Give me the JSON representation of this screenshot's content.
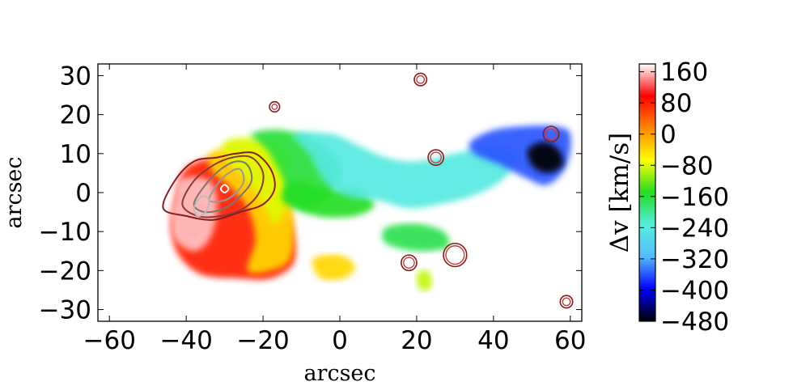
{
  "chart_data": {
    "type": "heatmap",
    "xlabel": "arcsec",
    "ylabel": "arcsec",
    "xlim": [
      -63,
      63
    ],
    "ylim": [
      -33,
      33
    ],
    "xticks": [
      {
        "value": -60,
        "label": "−60"
      },
      {
        "value": -40,
        "label": "−40"
      },
      {
        "value": -20,
        "label": "−20"
      },
      {
        "value": 0,
        "label": "0"
      },
      {
        "value": 20,
        "label": "20"
      },
      {
        "value": 40,
        "label": "40"
      },
      {
        "value": 60,
        "label": "60"
      }
    ],
    "yticks": [
      {
        "value": 30,
        "label": "30"
      },
      {
        "value": 20,
        "label": "20"
      },
      {
        "value": 10,
        "label": "10"
      },
      {
        "value": 0,
        "label": "0"
      },
      {
        "value": -10,
        "label": "−10"
      },
      {
        "value": -20,
        "label": "−20"
      },
      {
        "value": -30,
        "label": "−30"
      }
    ],
    "colorbar": {
      "label": "Δv [km/s]",
      "range": [
        -480,
        180
      ],
      "ticks": [
        {
          "value": 160,
          "label": "160"
        },
        {
          "value": 80,
          "label": "80"
        },
        {
          "value": 0,
          "label": "0"
        },
        {
          "value": -80,
          "label": "−80"
        },
        {
          "value": -160,
          "label": "−160"
        },
        {
          "value": -240,
          "label": "−240"
        },
        {
          "value": -320,
          "label": "−320"
        },
        {
          "value": -400,
          "label": "−400"
        },
        {
          "value": -480,
          "label": "−480"
        }
      ],
      "colormap": [
        "#000000",
        "#0000ff",
        "#55bbff",
        "#55eedd",
        "#22dd22",
        "#ffff00",
        "#ff8800",
        "#ff0000",
        "#ffffff"
      ]
    },
    "velocity_regions": [
      {
        "name": "red-head",
        "points": [
          [
            -43,
            -2
          ],
          [
            -41,
            5
          ],
          [
            -37,
            8
          ],
          [
            -30,
            9
          ],
          [
            -22,
            8
          ],
          [
            -17,
            4
          ],
          [
            -14,
            -4
          ],
          [
            -12,
            -10
          ],
          [
            -12,
            -18
          ],
          [
            -18,
            -22
          ],
          [
            -26,
            -22
          ],
          [
            -36,
            -21
          ],
          [
            -42,
            -16
          ],
          [
            -44,
            -9
          ]
        ],
        "value": 80
      },
      {
        "name": "white-core",
        "points": [
          [
            -43,
            -2
          ],
          [
            -42,
            3
          ],
          [
            -37,
            4
          ],
          [
            -33,
            2
          ],
          [
            -32,
            -5
          ],
          [
            -34,
            -12
          ],
          [
            -38,
            -15
          ],
          [
            -43,
            -12
          ],
          [
            -44,
            -6
          ]
        ],
        "value": 160
      },
      {
        "name": "orange-band",
        "points": [
          [
            -34,
            10
          ],
          [
            -27,
            12
          ],
          [
            -20,
            11
          ],
          [
            -16,
            6
          ],
          [
            -13,
            0
          ],
          [
            -12,
            -9
          ],
          [
            -13,
            -17
          ],
          [
            -18,
            -20
          ],
          [
            -24,
            -20
          ],
          [
            -22,
            -12
          ],
          [
            -24,
            -4
          ],
          [
            -29,
            2
          ],
          [
            -33,
            5
          ]
        ],
        "value": -40
      },
      {
        "name": "yellow-band",
        "points": [
          [
            -30,
            13
          ],
          [
            -22,
            14
          ],
          [
            -15,
            11
          ],
          [
            -13,
            4
          ],
          [
            -14,
            -4
          ],
          [
            -17,
            -8
          ],
          [
            -20,
            -3
          ],
          [
            -24,
            3
          ],
          [
            -29,
            8
          ]
        ],
        "value": -80
      },
      {
        "name": "green-ridge",
        "points": [
          [
            -23,
            15
          ],
          [
            -15,
            16
          ],
          [
            -6,
            13
          ],
          [
            0,
            7
          ],
          [
            -2,
            0
          ],
          [
            -8,
            -4
          ],
          [
            -13,
            -2
          ],
          [
            -15,
            4
          ],
          [
            -19,
            11
          ]
        ],
        "value": -160
      },
      {
        "name": "green-tail",
        "points": [
          [
            -15,
            -2
          ],
          [
            -6,
            -6
          ],
          [
            4,
            -6
          ],
          [
            9,
            -3
          ],
          [
            4,
            1
          ],
          [
            -4,
            1
          ],
          [
            -12,
            3
          ]
        ],
        "value": -150
      },
      {
        "name": "cyan-main",
        "points": [
          [
            -12,
            15
          ],
          [
            -2,
            15
          ],
          [
            5,
            12
          ],
          [
            12,
            9
          ],
          [
            20,
            8
          ],
          [
            30,
            10
          ],
          [
            40,
            12
          ],
          [
            46,
            9
          ],
          [
            42,
            3
          ],
          [
            34,
            -1
          ],
          [
            26,
            -3
          ],
          [
            18,
            -4
          ],
          [
            10,
            -2
          ],
          [
            2,
            -1
          ],
          [
            -4,
            3
          ],
          [
            -8,
            10
          ]
        ],
        "value": -240
      },
      {
        "name": "blue-tail",
        "points": [
          [
            34,
            13
          ],
          [
            40,
            16
          ],
          [
            48,
            17
          ],
          [
            56,
            17
          ],
          [
            60,
            15
          ],
          [
            59,
            7
          ],
          [
            54,
            2
          ],
          [
            48,
            4
          ],
          [
            42,
            7
          ],
          [
            35,
            10
          ]
        ],
        "value": -360
      },
      {
        "name": "black-tip",
        "points": [
          [
            49,
            11
          ],
          [
            53,
            13
          ],
          [
            57,
            11
          ],
          [
            58,
            7
          ],
          [
            54,
            5
          ],
          [
            50,
            7
          ]
        ],
        "value": -480
      },
      {
        "name": "green-south",
        "points": [
          [
            12,
            -9
          ],
          [
            20,
            -8
          ],
          [
            27,
            -10
          ],
          [
            28,
            -14
          ],
          [
            20,
            -15
          ],
          [
            12,
            -13
          ]
        ],
        "value": -170
      },
      {
        "name": "orange-south",
        "points": [
          [
            -7,
            -17
          ],
          [
            0,
            -16
          ],
          [
            4,
            -19
          ],
          [
            1,
            -22
          ],
          [
            -5,
            -22
          ]
        ],
        "value": -40
      },
      {
        "name": "yellow-south",
        "points": [
          [
            20,
            -21
          ],
          [
            23,
            -20
          ],
          [
            24,
            -24
          ],
          [
            21,
            -25
          ]
        ],
        "value": -90
      }
    ],
    "contours": [
      {
        "name": "outer",
        "color": "#8b1a1a",
        "points": [
          [
            -46,
            -4
          ],
          [
            -43,
            3
          ],
          [
            -38,
            8
          ],
          [
            -32,
            9
          ],
          [
            -27,
            10
          ],
          [
            -22,
            10
          ],
          [
            -18,
            6
          ],
          [
            -17,
            1
          ],
          [
            -20,
            -3
          ],
          [
            -26,
            -5
          ],
          [
            -33,
            -7
          ],
          [
            -40,
            -6
          ]
        ]
      },
      {
        "name": "mid-1",
        "color": "#8b3a3a",
        "points": [
          [
            -41,
            -3
          ],
          [
            -38,
            3
          ],
          [
            -33,
            7
          ],
          [
            -28,
            9
          ],
          [
            -23,
            9
          ],
          [
            -20,
            5
          ],
          [
            -21,
            0
          ],
          [
            -25,
            -4
          ],
          [
            -31,
            -6
          ],
          [
            -37,
            -6
          ]
        ]
      },
      {
        "name": "mid-2",
        "color": "#777777",
        "points": [
          [
            -38,
            -3
          ],
          [
            -35,
            2
          ],
          [
            -31,
            6
          ],
          [
            -27,
            8
          ],
          [
            -24,
            7
          ],
          [
            -23,
            3
          ],
          [
            -26,
            -1
          ],
          [
            -30,
            -4
          ],
          [
            -35,
            -5
          ]
        ]
      },
      {
        "name": "inner-1",
        "color": "#999999",
        "points": [
          [
            -34,
            -2
          ],
          [
            -32,
            2
          ],
          [
            -29,
            5
          ],
          [
            -26,
            6
          ],
          [
            -25,
            3
          ],
          [
            -27,
            0
          ],
          [
            -30,
            -2
          ]
        ]
      },
      {
        "name": "inner-2",
        "color": "#bbbbbb",
        "points": [
          [
            -38,
            -4
          ],
          [
            -36,
            -1
          ],
          [
            -34,
            -2
          ],
          [
            -35,
            -5
          ],
          [
            -37,
            -6
          ]
        ]
      },
      {
        "name": "inner-3",
        "color": "#ffffff",
        "points": [
          [
            -31,
            1
          ],
          [
            -30,
            2
          ],
          [
            -29,
            1
          ],
          [
            -30,
            0
          ]
        ]
      }
    ],
    "point_sources": [
      {
        "x": 21,
        "y": 29,
        "r": 1.2
      },
      {
        "x": -17,
        "y": 22,
        "r": 0.9
      },
      {
        "x": 55,
        "y": 15,
        "r": 1.6
      },
      {
        "x": 25,
        "y": 9,
        "r": 1.6
      },
      {
        "x": 18,
        "y": -18,
        "r": 1.6
      },
      {
        "x": 30,
        "y": -16,
        "r": 2.6
      },
      {
        "x": 59,
        "y": -28,
        "r": 1.2
      }
    ]
  }
}
